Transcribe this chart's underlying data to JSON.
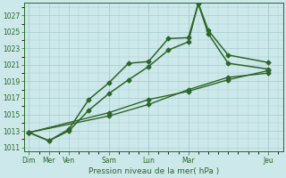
{
  "xlabel": "Pression niveau de la mer( hPa )",
  "background_color": "#cce8ea",
  "grid_color": "#a8ccce",
  "line_color": "#2d6629",
  "ylim": [
    1010.5,
    1028.5
  ],
  "yticks": [
    1011,
    1013,
    1015,
    1017,
    1019,
    1021,
    1023,
    1025,
    1027
  ],
  "xtick_map": {
    "0": "Dim",
    "2": "Mer",
    "4": "Ven",
    "8": "Sam",
    "12": "Lun",
    "16": "Mar",
    "24": "Jeu"
  },
  "xlim": [
    -0.5,
    25.5
  ],
  "vlines": [
    0,
    8,
    12,
    16,
    24
  ],
  "series": [
    {
      "x": [
        0,
        2,
        4,
        6,
        8,
        10,
        12,
        14,
        16,
        17,
        18,
        20,
        24
      ],
      "y": [
        1012.8,
        1011.8,
        1013.2,
        1016.8,
        1018.8,
        1021.2,
        1021.4,
        1024.2,
        1024.3,
        1028.4,
        1024.8,
        1021.2,
        1020.5
      ],
      "marker": "D",
      "markersize": 2.5,
      "linewidth": 1.1
    },
    {
      "x": [
        0,
        2,
        4,
        6,
        8,
        10,
        12,
        14,
        16,
        17,
        18,
        20,
        24
      ],
      "y": [
        1012.8,
        1011.8,
        1013.0,
        1015.5,
        1017.5,
        1019.2,
        1020.8,
        1022.8,
        1023.8,
        1028.5,
        1025.2,
        1022.2,
        1021.3
      ],
      "marker": "D",
      "markersize": 2.5,
      "linewidth": 1.1
    },
    {
      "x": [
        0,
        8,
        12,
        16,
        20,
        24
      ],
      "y": [
        1012.8,
        1014.8,
        1016.2,
        1018.0,
        1019.5,
        1020.0
      ],
      "marker": "D",
      "markersize": 2.5,
      "linewidth": 1.0
    },
    {
      "x": [
        0,
        8,
        12,
        16,
        20,
        24
      ],
      "y": [
        1012.8,
        1015.2,
        1016.8,
        1017.8,
        1019.2,
        1020.3
      ],
      "marker": "D",
      "markersize": 2.5,
      "linewidth": 1.0
    }
  ]
}
